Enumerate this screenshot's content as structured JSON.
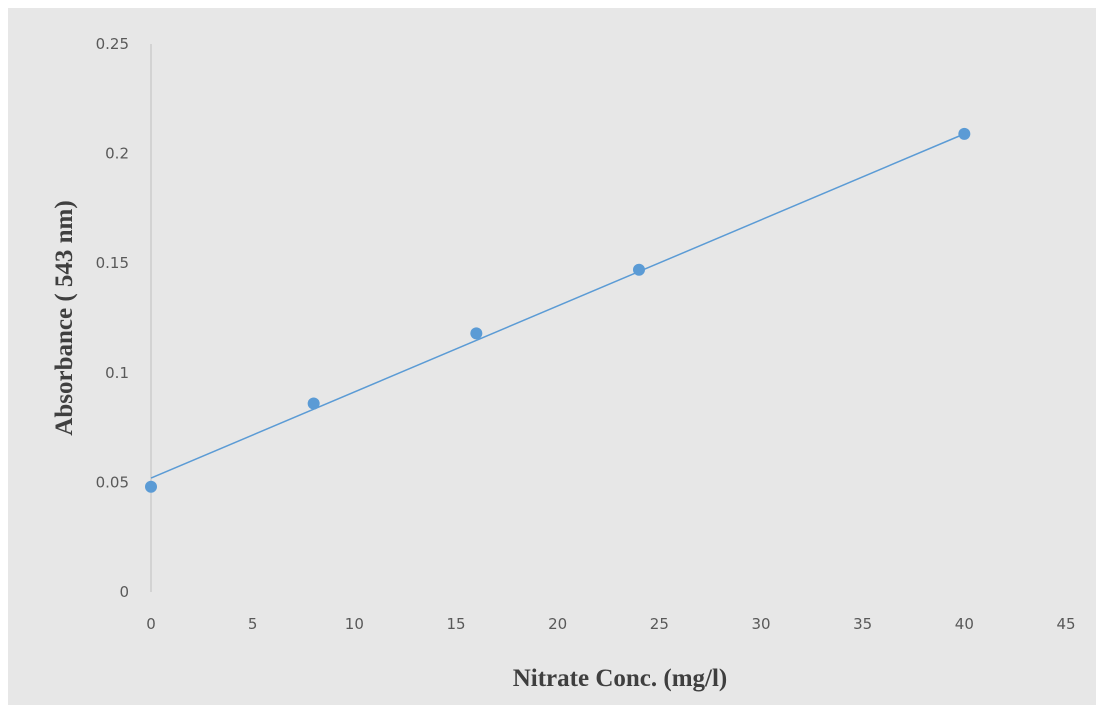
{
  "chart_data": {
    "type": "scatter",
    "title": "",
    "xlabel": "Nitrate Conc. (mg/l)",
    "ylabel": "Absorbance ( 543 nm)",
    "xlim": [
      0,
      45
    ],
    "ylim": [
      0,
      0.25
    ],
    "x_ticks": [
      "0",
      "5",
      "10",
      "15",
      "20",
      "25",
      "30",
      "35",
      "40",
      "45"
    ],
    "y_ticks": [
      "0",
      "0.05",
      "0.1",
      "0.15",
      "0.2",
      "0.25"
    ],
    "grid": false,
    "legend": "none",
    "series": [
      {
        "x": [
          0,
          8,
          16,
          24,
          40
        ],
        "y": [
          0.048,
          0.086,
          0.118,
          0.147,
          0.209
        ],
        "color": "#5b9bd5",
        "marker": "circle"
      }
    ],
    "trendline": {
      "type": "linear",
      "x": [
        0,
        40
      ],
      "y": [
        0.052,
        0.209
      ],
      "color": "#5b9bd5"
    }
  }
}
